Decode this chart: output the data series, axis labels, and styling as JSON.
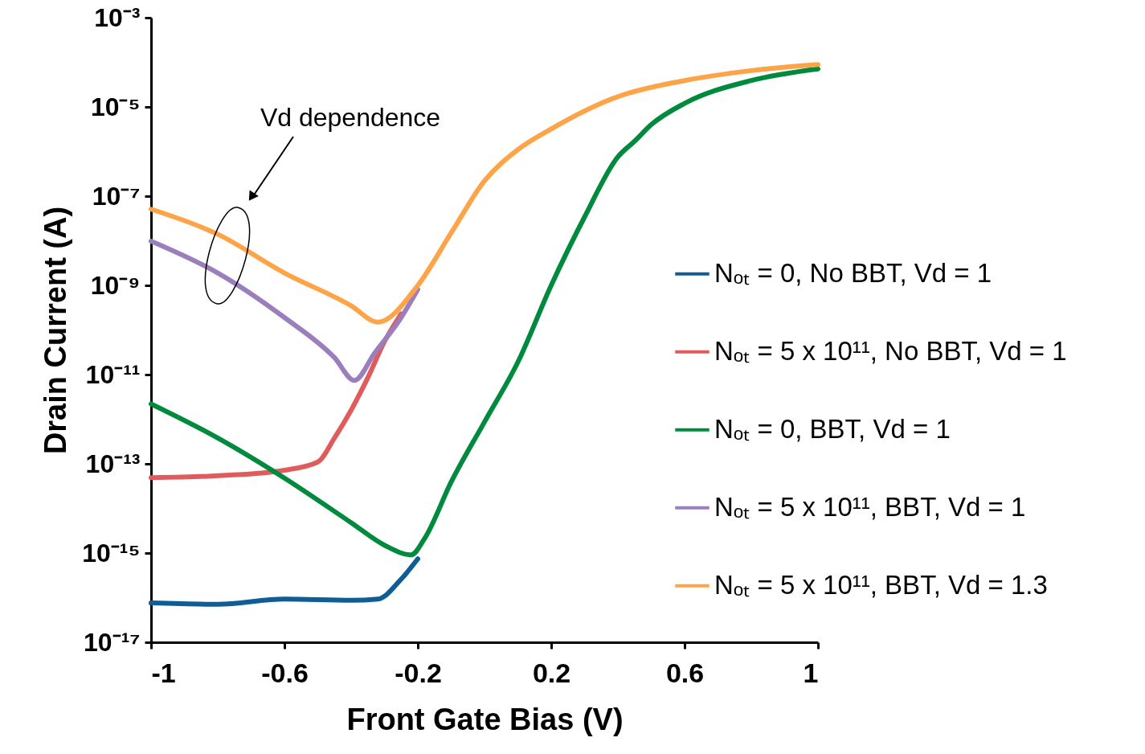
{
  "chart_data": {
    "type": "line",
    "xlabel": "Front Gate Bias (V)",
    "ylabel": "Drain Current (A)",
    "log": true,
    "grid": false,
    "legend": "right",
    "marker": "none",
    "line_style": "solid",
    "xlim": [
      -1,
      1
    ],
    "xticks": [
      -1,
      -0.6,
      -0.2,
      0.2,
      0.6,
      1
    ],
    "ylim": [
      1e-17,
      0.001
    ],
    "yticks": [
      {
        "value": 1e-17,
        "label": "10⁻¹⁷"
      },
      {
        "value": 1e-15,
        "label": "10⁻¹⁵"
      },
      {
        "value": 1e-13,
        "label": "10⁻¹³"
      },
      {
        "value": 1e-11,
        "label": "10⁻¹¹"
      },
      {
        "value": 1e-09,
        "label": "10⁻⁹"
      },
      {
        "value": 1e-07,
        "label": "10⁻⁷"
      },
      {
        "value": 1e-05,
        "label": "10⁻⁵"
      },
      {
        "value": 0.001,
        "label": "10⁻³"
      }
    ],
    "annotations": [
      "Vd dependence"
    ],
    "series": [
      {
        "name": "Nₒₜ = 0, No BBT, Vd = 1",
        "color": "#0f5c96",
        "x": [
          -1,
          -0.8,
          -0.6,
          -0.4,
          -0.32,
          -0.25,
          -0.2
        ],
        "values": [
          7.6e-17,
          7.1e-17,
          9.3e-17,
          8.7e-17,
          9.3e-17,
          2.6e-16,
          7.4e-16
        ]
      },
      {
        "name": "Nₒₜ = 5 x 10¹¹, No BBT, Vd = 1",
        "color": "#e05c5c",
        "x": [
          -1,
          -0.8,
          -0.6,
          -0.5,
          -0.45,
          -0.4,
          -0.35,
          -0.3,
          -0.25
        ],
        "values": [
          4.9e-14,
          5.4e-14,
          7.2e-14,
          1.1e-13,
          3.8e-13,
          1.6e-12,
          8.5e-12,
          5.5e-11,
          2.3e-10
        ]
      },
      {
        "name": "Nₒₜ = 0, BBT, Vd = 1",
        "color": "#008a3e",
        "x": [
          -1,
          -0.8,
          -0.6,
          -0.4,
          -0.3,
          -0.22,
          -0.18,
          -0.1,
          0,
          0.1,
          0.2,
          0.3,
          0.4,
          0.45,
          0.5,
          0.6,
          0.8,
          1
        ],
        "values": [
          2.2e-12,
          3.8e-13,
          4.8e-14,
          4.8e-15,
          1.5e-15,
          9.1e-16,
          2.1e-15,
          3.9e-14,
          8.7e-13,
          1.9e-11,
          1e-09,
          3.4e-08,
          7.6e-07,
          1.7e-06,
          4e-06,
          1.2e-05,
          3.9e-05,
          7.1e-05
        ]
      },
      {
        "name": "Nₒₜ = 5 x 10¹¹, BBT, Vd = 1",
        "color": "#9b7fbd",
        "x": [
          -1,
          -0.8,
          -0.6,
          -0.45,
          -0.39,
          -0.33,
          -0.25,
          -0.2
        ],
        "values": [
          9.8e-09,
          1.9e-09,
          1.9e-10,
          2.4e-11,
          7.4e-12,
          3e-11,
          1.9e-10,
          8.1e-10
        ]
      },
      {
        "name": "Nₒₜ = 5 x 10¹¹, BBT, Vd = 1.3",
        "color": "#fda448",
        "x": [
          -1,
          -0.8,
          -0.6,
          -0.4,
          -0.32,
          -0.2,
          -0.1,
          0,
          0.1,
          0.2,
          0.4,
          0.6,
          0.8,
          1
        ],
        "values": [
          5.1e-08,
          1.4e-08,
          1.9e-09,
          3.5e-10,
          1.5e-10,
          1e-09,
          1.5e-08,
          2.2e-07,
          1.1e-06,
          3.2e-06,
          1.7e-05,
          3.9e-05,
          6.5e-05,
          8.9e-05
        ]
      }
    ]
  }
}
